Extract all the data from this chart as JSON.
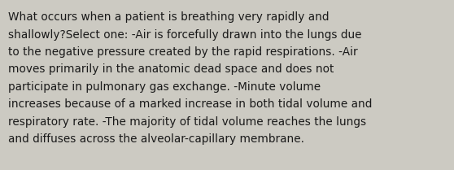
{
  "text": "What occurs when a patient is breathing very rapidly and shallowly?Select one: -Air is forcefully drawn into the lungs due to the negative pressure created by the rapid respirations. -Air moves primarily in the anatomic dead space and does not participate in pulmonary gas exchange. -Minute volume increases because of a marked increase in both tidal volume and respiratory rate. -The majority of tidal volume reaches the lungs and diffuses across the alveolar-capillary membrane.",
  "wrapped_lines": [
    "What occurs when a patient is breathing very rapidly and",
    "shallowly?Select one: -Air is forcefully drawn into the lungs due",
    "to the negative pressure created by the rapid respirations. -Air",
    "moves primarily in the anatomic dead space and does not",
    "participate in pulmonary gas exchange. -Minute volume",
    "increases because of a marked increase in both tidal volume and",
    "respiratory rate. -The majority of tidal volume reaches the lungs",
    "and diffuses across the alveolar-capillary membrane."
  ],
  "background_color": "#cccac2",
  "text_color": "#1a1a1a",
  "font_size": 9.8,
  "fig_width": 5.58,
  "fig_height": 2.09,
  "dpi": 100
}
